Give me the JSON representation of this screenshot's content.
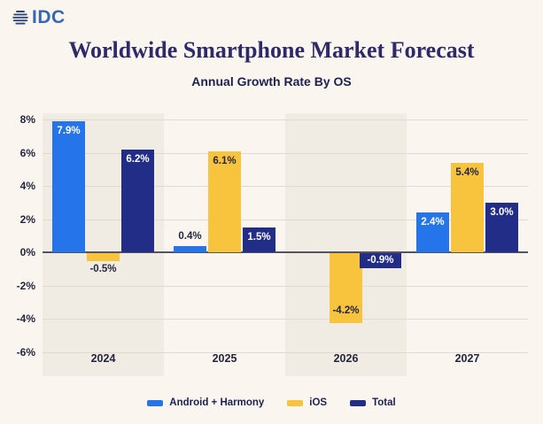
{
  "logo": {
    "text": "IDC"
  },
  "colors": {
    "background": "#faf6ef",
    "band_highlight": "#f1ece3",
    "grid": "#e0dbd2",
    "zero_line": "#57535e",
    "axis_text": "#23263e",
    "title_text": "#2e2a6a",
    "subtitle_text": "#1d2150",
    "logo_blue": "#3767b0",
    "globe_navy": "#2f4679"
  },
  "chart_data": {
    "type": "bar",
    "title": "Worldwide Smartphone Market Forecast",
    "subtitle": "Annual Growth Rate By OS",
    "categories": [
      "2024",
      "2025",
      "2026",
      "2027"
    ],
    "series": [
      {
        "key": "android-harmony",
        "name": "Android + Harmony",
        "color": "#2574e9",
        "inside_label_color": "#ffffff",
        "values": [
          7.9,
          0.4,
          null,
          2.4
        ],
        "labels": [
          "7.9%",
          "0.4%",
          null,
          "2.4%"
        ]
      },
      {
        "key": "ios",
        "name": "iOS",
        "color": "#f8c43d",
        "inside_label_color": "#232543",
        "values": [
          -0.5,
          6.1,
          -4.2,
          5.4
        ],
        "labels": [
          "-0.5%",
          "6.1%",
          "-4.2%",
          "5.4%"
        ]
      },
      {
        "key": "total",
        "name": "Total",
        "color": "#222d87",
        "inside_label_color": "#ffffff",
        "values": [
          6.2,
          1.5,
          -0.9,
          3.0
        ],
        "labels": [
          "6.2%",
          "1.5%",
          "-0.9%",
          "3.0%"
        ]
      }
    ],
    "y_ticks": [
      8,
      6,
      4,
      2,
      0,
      -2,
      -4,
      -6
    ],
    "y_tick_labels": [
      "8%",
      "6%",
      "4%",
      "2%",
      "0%",
      "-2%",
      "-4%",
      "-6%"
    ],
    "ylim": [
      -7.5,
      8.4
    ],
    "xlabel": "",
    "ylabel": "",
    "grid": true,
    "legend_position": "bottom",
    "band_highlight_categories": [
      "2024",
      "2026"
    ]
  }
}
